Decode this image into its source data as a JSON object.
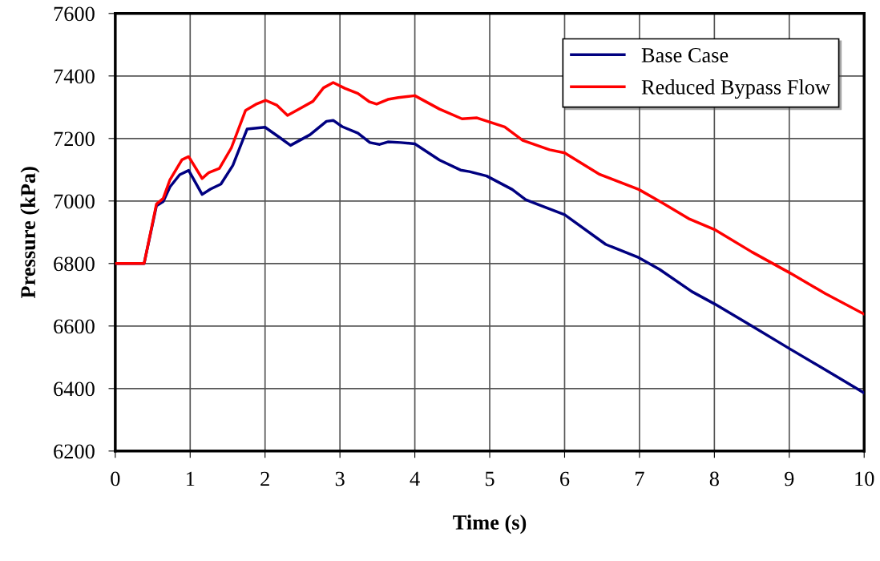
{
  "chart_data": {
    "type": "line",
    "xlabel": "Time (s)",
    "ylabel": "Pressure (kPa)",
    "xlim": [
      0,
      10
    ],
    "xticks": [
      0,
      1,
      2,
      3,
      4,
      5,
      6,
      7,
      8,
      9,
      10
    ],
    "ylim": [
      6200,
      7600
    ],
    "yticks": [
      6200,
      6400,
      6600,
      6800,
      7000,
      7200,
      7400,
      7600
    ],
    "grid": true,
    "legend": "top right",
    "line_style": "solid",
    "marker": "none",
    "series": [
      {
        "name": "Base Case",
        "color": "#000080",
        "x": [
          0,
          0.385,
          0.55,
          0.64,
          0.73,
          0.86,
          0.98,
          1.16,
          1.27,
          1.41,
          1.57,
          1.76,
          2.0,
          2.19,
          2.34,
          2.6,
          2.82,
          2.91,
          3.03,
          3.24,
          3.4,
          3.53,
          3.64,
          3.81,
          4.0,
          4.33,
          4.61,
          4.73,
          4.96,
          5.3,
          5.48,
          6.0,
          6.55,
          6.99,
          7.27,
          7.7,
          8.0,
          8.5,
          9.0,
          9.6,
          10.0
        ],
        "values": [
          6800,
          6800,
          6985,
          6998,
          7045,
          7084,
          7098,
          7021,
          7038,
          7054,
          7114,
          7230,
          7236,
          7204,
          7178,
          7212,
          7255,
          7258,
          7238,
          7217,
          7187,
          7181,
          7189,
          7187,
          7183,
          7131,
          7099,
          7094,
          7080,
          7037,
          7004,
          6956,
          6861,
          6819,
          6781,
          6710,
          6671,
          6600,
          6528,
          6443,
          6386
        ]
      },
      {
        "name": "Reduced Bypass Flow",
        "color": "#ff0000",
        "x": [
          0,
          0.385,
          0.55,
          0.64,
          0.73,
          0.89,
          0.98,
          1.16,
          1.25,
          1.39,
          1.55,
          1.74,
          1.89,
          2.01,
          2.16,
          2.3,
          2.46,
          2.64,
          2.78,
          2.91,
          3.07,
          3.24,
          3.39,
          3.49,
          3.64,
          3.78,
          4.0,
          4.33,
          4.63,
          4.83,
          5.2,
          5.44,
          5.8,
          6.0,
          6.47,
          6.99,
          7.27,
          7.67,
          8.0,
          8.5,
          9.0,
          9.48,
          10.0
        ],
        "values": [
          6800,
          6800,
          6990,
          7008,
          7068,
          7132,
          7142,
          7072,
          7091,
          7104,
          7170,
          7290,
          7311,
          7322,
          7306,
          7274,
          7295,
          7319,
          7362,
          7379,
          7360,
          7344,
          7318,
          7310,
          7325,
          7331,
          7337,
          7294,
          7263,
          7266,
          7237,
          7194,
          7164,
          7154,
          7085,
          7037,
          6999,
          6942,
          6909,
          6837,
          6771,
          6704,
          6638
        ]
      }
    ]
  }
}
